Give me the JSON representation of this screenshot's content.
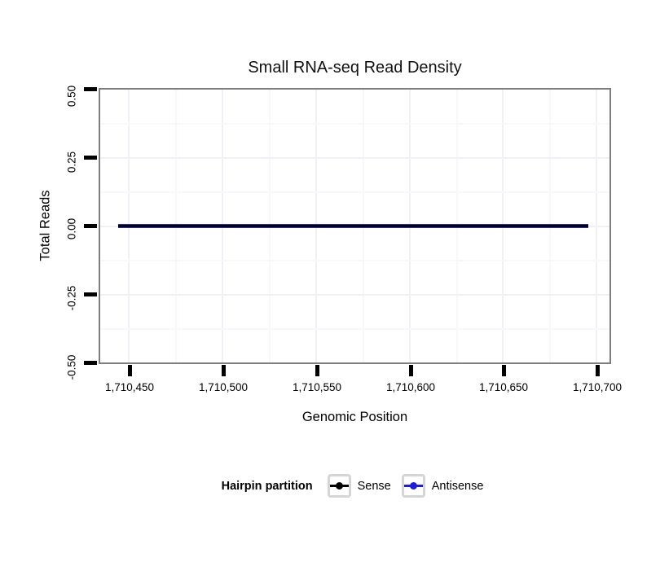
{
  "chart_data": {
    "type": "line",
    "title": "Small RNA-seq Read Density",
    "xlabel": "Genomic Position",
    "ylabel": "Total Reads",
    "x_tick_labels": [
      "1,710,450",
      "1,710,500",
      "1,710,550",
      "1,710,600",
      "1,710,650",
      "1,710,700"
    ],
    "x_tick_values": [
      1710450,
      1710500,
      1710550,
      1710600,
      1710650,
      1710700
    ],
    "y_tick_labels": [
      "0.50",
      "0.25",
      "0.00",
      "-0.25",
      "-0.50"
    ],
    "y_tick_values": [
      0.5,
      0.25,
      0.0,
      -0.25,
      -0.5
    ],
    "xlim": [
      1710433,
      1710707
    ],
    "ylim": [
      -0.5,
      0.5
    ],
    "grid": "very faint light-grey major and minor gridlines on white panel, grey panel border",
    "y_tick_label_rotation": 90,
    "series": [
      {
        "name": "Sense",
        "color": "#000000",
        "x_start": 1710444,
        "x_end": 1710694,
        "y_constant": 0
      },
      {
        "name": "Antisense",
        "color": "#1d1de0",
        "x_start": 1710444,
        "x_end": 1710694,
        "y_constant": 0
      }
    ],
    "note": "Both series are flat at y = 0 and overlap, appearing as one dark navy horizontal line across the panel",
    "legend": {
      "title": "Hairpin partition",
      "position": "bottom",
      "entries": [
        {
          "label": "Sense",
          "color": "#000000"
        },
        {
          "label": "Antisense",
          "color": "#1d1de0"
        }
      ]
    },
    "colors": {
      "panel_border": "#7e7e7e",
      "tick_marks": "#000000",
      "legend_key_border": "#d5d5d5",
      "overlap_line": "#14143c"
    }
  }
}
